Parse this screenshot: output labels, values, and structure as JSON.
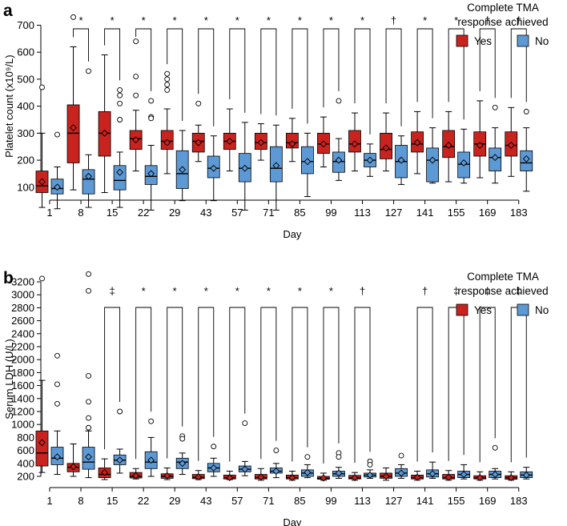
{
  "chart_data": [
    {
      "panel": "a",
      "type": "boxplot",
      "xlabel": "Day",
      "ylabel": "Platelet count (x10⁹/L)",
      "ylim": [
        0,
        750
      ],
      "yticks": [
        100,
        200,
        300,
        400,
        500,
        600,
        700
      ],
      "legend": {
        "title_line1": "Complete TMA",
        "title_line2": "response achieved",
        "placement": "top-right"
      },
      "categories": [
        "1",
        "8",
        "15",
        "22",
        "29",
        "43",
        "57",
        "71",
        "85",
        "99",
        "113",
        "127",
        "141",
        "155",
        "169",
        "183"
      ],
      "significance": [
        "",
        "*",
        "*",
        "*",
        "*",
        "*",
        "*",
        "*",
        "*",
        "*",
        "*",
        "†",
        "*",
        "*",
        "†",
        "†"
      ],
      "series": [
        {
          "name": "Yes",
          "color": "#c8231f",
          "boxes": [
            {
              "min": 25,
              "q1": 80,
              "median": 105,
              "q3": 160,
              "max": 300,
              "mean": 120,
              "outliers": [
                470
              ]
            },
            {
              "min": 90,
              "q1": 190,
              "median": 300,
              "q3": 405,
              "max": 620,
              "mean": 320,
              "outliers": [
                730
              ]
            },
            {
              "min": 80,
              "q1": 215,
              "median": 300,
              "q3": 380,
              "max": 590,
              "mean": 300,
              "outliers": []
            },
            {
              "min": 160,
              "q1": 240,
              "median": 280,
              "q3": 310,
              "max": 385,
              "mean": 275,
              "outliers": [
                640,
                510,
                440
              ]
            },
            {
              "min": 150,
              "q1": 240,
              "median": 270,
              "q3": 310,
              "max": 390,
              "mean": 265,
              "outliers": [
                520,
                500,
                480,
                460
              ]
            },
            {
              "min": 195,
              "q1": 230,
              "median": 270,
              "q3": 300,
              "max": 330,
              "mean": 265,
              "outliers": [
                410
              ]
            },
            {
              "min": 160,
              "q1": 240,
              "median": 270,
              "q3": 300,
              "max": 390,
              "mean": 270,
              "outliers": []
            },
            {
              "min": 200,
              "q1": 240,
              "median": 265,
              "q3": 300,
              "max": 335,
              "mean": 265,
              "outliers": []
            },
            {
              "min": 195,
              "q1": 245,
              "median": 265,
              "q3": 300,
              "max": 355,
              "mean": 260,
              "outliers": []
            },
            {
              "min": 175,
              "q1": 225,
              "median": 260,
              "q3": 300,
              "max": 360,
              "mean": 260,
              "outliers": []
            },
            {
              "min": 160,
              "q1": 230,
              "median": 260,
              "q3": 310,
              "max": 375,
              "mean": 260,
              "outliers": []
            },
            {
              "min": 160,
              "q1": 205,
              "median": 240,
              "q3": 300,
              "max": 375,
              "mean": 245,
              "outliers": []
            },
            {
              "min": 150,
              "q1": 230,
              "median": 260,
              "q3": 305,
              "max": 380,
              "mean": 265,
              "outliers": []
            },
            {
              "min": 120,
              "q1": 210,
              "median": 250,
              "q3": 310,
              "max": 380,
              "mean": 255,
              "outliers": []
            },
            {
              "min": 135,
              "q1": 215,
              "median": 260,
              "q3": 305,
              "max": 420,
              "mean": 255,
              "outliers": []
            },
            {
              "min": 140,
              "q1": 215,
              "median": 255,
              "q3": 305,
              "max": 395,
              "mean": 255,
              "outliers": []
            }
          ]
        },
        {
          "name": "No",
          "color": "#5d99d4",
          "boxes": [
            {
              "min": 20,
              "q1": 75,
              "median": 95,
              "q3": 130,
              "max": 175,
              "mean": 100,
              "outliers": [
                295
              ]
            },
            {
              "min": 25,
              "q1": 75,
              "median": 130,
              "q3": 165,
              "max": 220,
              "mean": 140,
              "outliers": [
                530
              ]
            },
            {
              "min": 25,
              "q1": 90,
              "median": 125,
              "q3": 180,
              "max": 230,
              "mean": 155,
              "outliers": [
                460,
                440,
                410,
                350
              ]
            },
            {
              "min": 15,
              "q1": 110,
              "median": 140,
              "q3": 180,
              "max": 255,
              "mean": 150,
              "outliers": [
                420,
                360,
                355
              ]
            },
            {
              "min": 50,
              "q1": 95,
              "median": 150,
              "q3": 235,
              "max": 310,
              "mean": 165,
              "outliers": []
            },
            {
              "min": 50,
              "q1": 135,
              "median": 170,
              "q3": 215,
              "max": 290,
              "mean": 170,
              "outliers": []
            },
            {
              "min": 15,
              "q1": 120,
              "median": 170,
              "q3": 225,
              "max": 340,
              "mean": 170,
              "outliers": []
            },
            {
              "min": 15,
              "q1": 120,
              "median": 170,
              "q3": 250,
              "max": 330,
              "mean": 180,
              "outliers": []
            },
            {
              "min": 65,
              "q1": 150,
              "median": 195,
              "q3": 250,
              "max": 300,
              "mean": 195,
              "outliers": []
            },
            {
              "min": 125,
              "q1": 155,
              "median": 195,
              "q3": 230,
              "max": 280,
              "mean": 200,
              "outliers": [
                420
              ]
            },
            {
              "min": 140,
              "q1": 175,
              "median": 200,
              "q3": 225,
              "max": 260,
              "mean": 200,
              "outliers": []
            },
            {
              "min": 110,
              "q1": 135,
              "median": 195,
              "q3": 255,
              "max": 290,
              "mean": 200,
              "outliers": []
            },
            {
              "min": 115,
              "q1": 120,
              "median": 200,
              "q3": 245,
              "max": 320,
              "mean": 200,
              "outliers": []
            },
            {
              "min": 115,
              "q1": 135,
              "median": 185,
              "q3": 230,
              "max": 315,
              "mean": 190,
              "outliers": []
            },
            {
              "min": 115,
              "q1": 160,
              "median": 210,
              "q3": 245,
              "max": 320,
              "mean": 210,
              "outliers": [
                395
              ]
            },
            {
              "min": 85,
              "q1": 160,
              "median": 190,
              "q3": 235,
              "max": 320,
              "mean": 205,
              "outliers": [
                380
              ]
            }
          ]
        }
      ]
    },
    {
      "panel": "b",
      "type": "boxplot",
      "xlabel": "Day",
      "ylabel": "Serum LDH (U/L)",
      "ylim": [
        100,
        3350
      ],
      "yticks": [
        200,
        400,
        600,
        800,
        1000,
        1200,
        1400,
        1600,
        1800,
        2000,
        2200,
        2400,
        2600,
        2800,
        3000,
        3200
      ],
      "legend": {
        "title_line1": "Complete TMA",
        "title_line2": "response achieved",
        "placement": "top-right"
      },
      "categories": [
        "1",
        "8",
        "15",
        "22",
        "29",
        "43",
        "57",
        "71",
        "85",
        "99",
        "113",
        "127",
        "141",
        "155",
        "169",
        "183"
      ],
      "significance": [
        "",
        "",
        "‡",
        "*",
        "*",
        "*",
        "*",
        "*",
        "*",
        "*",
        "†",
        "",
        "†",
        "‡",
        "‡",
        "‡"
      ],
      "series": [
        {
          "name": "Yes",
          "color": "#c8231f",
          "boxes": [
            {
              "min": 260,
              "q1": 360,
              "median": 560,
              "q3": 900,
              "max": 1680,
              "mean": 720,
              "outliers": [
                3250
              ]
            },
            {
              "min": 200,
              "q1": 270,
              "median": 340,
              "q3": 400,
              "max": 700,
              "mean": 350,
              "outliers": []
            },
            {
              "min": 150,
              "q1": 180,
              "median": 230,
              "q3": 330,
              "max": 470,
              "mean": 260,
              "outliers": []
            },
            {
              "min": 160,
              "q1": 175,
              "median": 200,
              "q3": 260,
              "max": 320,
              "mean": 210,
              "outliers": []
            },
            {
              "min": 150,
              "q1": 170,
              "median": 200,
              "q3": 240,
              "max": 330,
              "mean": 210,
              "outliers": []
            },
            {
              "min": 150,
              "q1": 165,
              "median": 185,
              "q3": 230,
              "max": 290,
              "mean": 190,
              "outliers": []
            },
            {
              "min": 150,
              "q1": 160,
              "median": 180,
              "q3": 220,
              "max": 280,
              "mean": 180,
              "outliers": []
            },
            {
              "min": 140,
              "q1": 160,
              "median": 180,
              "q3": 230,
              "max": 320,
              "mean": 190,
              "outliers": []
            },
            {
              "min": 140,
              "q1": 160,
              "median": 180,
              "q3": 220,
              "max": 280,
              "mean": 180,
              "outliers": []
            },
            {
              "min": 140,
              "q1": 155,
              "median": 170,
              "q3": 200,
              "max": 250,
              "mean": 175,
              "outliers": []
            },
            {
              "min": 140,
              "q1": 160,
              "median": 175,
              "q3": 215,
              "max": 260,
              "mean": 180,
              "outliers": []
            },
            {
              "min": 140,
              "q1": 170,
              "median": 200,
              "q3": 250,
              "max": 330,
              "mean": 200,
              "outliers": []
            },
            {
              "min": 140,
              "q1": 160,
              "median": 180,
              "q3": 220,
              "max": 280,
              "mean": 185,
              "outliers": []
            },
            {
              "min": 140,
              "q1": 160,
              "median": 180,
              "q3": 230,
              "max": 290,
              "mean": 185,
              "outliers": []
            },
            {
              "min": 140,
              "q1": 160,
              "median": 175,
              "q3": 210,
              "max": 270,
              "mean": 180,
              "outliers": []
            },
            {
              "min": 140,
              "q1": 155,
              "median": 180,
              "q3": 210,
              "max": 270,
              "mean": 180,
              "outliers": []
            }
          ]
        },
        {
          "name": "No",
          "color": "#5d99d4",
          "boxes": [
            {
              "min": 230,
              "q1": 380,
              "median": 480,
              "q3": 650,
              "max": 900,
              "mean": 500,
              "outliers": [
                2060,
                1620,
                1320
              ]
            },
            {
              "min": 180,
              "q1": 310,
              "median": 420,
              "q3": 650,
              "max": 900,
              "mean": 500,
              "outliers": [
                3320,
                3060,
                1750,
                1350,
                1100,
                950
              ]
            },
            {
              "min": 250,
              "q1": 380,
              "median": 450,
              "q3": 530,
              "max": 620,
              "mean": 450,
              "outliers": [
                1200
              ]
            },
            {
              "min": 200,
              "q1": 320,
              "median": 420,
              "q3": 580,
              "max": 800,
              "mean": 450,
              "outliers": [
                1050
              ]
            },
            {
              "min": 230,
              "q1": 320,
              "median": 420,
              "q3": 480,
              "max": 560,
              "mean": 400,
              "outliers": [
                820,
                780
              ]
            },
            {
              "min": 200,
              "q1": 270,
              "median": 330,
              "q3": 400,
              "max": 480,
              "mean": 330,
              "outliers": [
                660
              ]
            },
            {
              "min": 210,
              "q1": 270,
              "median": 310,
              "q3": 360,
              "max": 430,
              "mean": 310,
              "outliers": [
                1020
              ]
            },
            {
              "min": 180,
              "q1": 250,
              "median": 280,
              "q3": 330,
              "max": 400,
              "mean": 280,
              "outliers": [
                600
              ]
            },
            {
              "min": 180,
              "q1": 200,
              "median": 250,
              "q3": 300,
              "max": 380,
              "mean": 260,
              "outliers": [
                500
              ]
            },
            {
              "min": 170,
              "q1": 200,
              "median": 240,
              "q3": 280,
              "max": 340,
              "mean": 250,
              "outliers": [
                560,
                500
              ]
            },
            {
              "min": 170,
              "q1": 190,
              "median": 220,
              "q3": 250,
              "max": 300,
              "mean": 220,
              "outliers": [
                430,
                380
              ]
            },
            {
              "min": 170,
              "q1": 200,
              "median": 250,
              "q3": 320,
              "max": 380,
              "mean": 250,
              "outliers": [
                520
              ]
            },
            {
              "min": 170,
              "q1": 190,
              "median": 240,
              "q3": 300,
              "max": 420,
              "mean": 240,
              "outliers": []
            },
            {
              "min": 160,
              "q1": 180,
              "median": 230,
              "q3": 280,
              "max": 380,
              "mean": 230,
              "outliers": []
            },
            {
              "min": 160,
              "q1": 180,
              "median": 230,
              "q3": 280,
              "max": 320,
              "mean": 230,
              "outliers": [
                640
              ]
            },
            {
              "min": 160,
              "q1": 180,
              "median": 220,
              "q3": 270,
              "max": 340,
              "mean": 220,
              "outliers": []
            }
          ]
        }
      ]
    }
  ]
}
